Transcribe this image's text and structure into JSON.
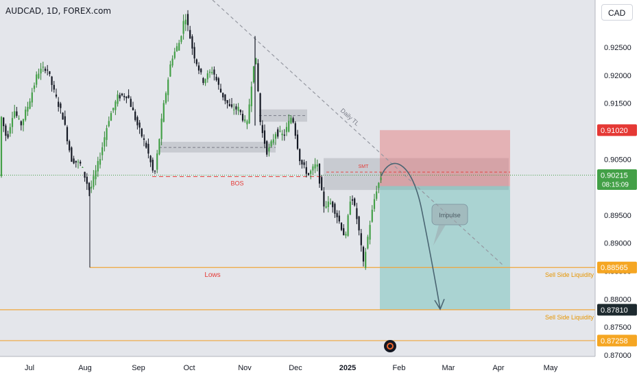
{
  "header": {
    "title": "AUDCAD, 1D, FOREX.com",
    "currency": "CAD"
  },
  "colors": {
    "up": "#26a69a",
    "down": "#131722",
    "up_body": "#43a047",
    "bg": "#e4e6eb",
    "accent_orange": "#f0a53a",
    "red": "#e53935"
  },
  "chart_data": {
    "type": "candlestick",
    "y_ticks": [
      "0.92500",
      "0.92000",
      "0.91500",
      "0.91000",
      "0.90500",
      "0.90000",
      "0.89500",
      "0.89000",
      "0.88500",
      "0.88000",
      "0.87500",
      "0.87000"
    ],
    "y_tick_values": [
      0.925,
      0.92,
      0.915,
      0.91,
      0.905,
      0.9,
      0.895,
      0.89,
      0.885,
      0.88,
      0.875,
      0.87
    ],
    "x_ticks": [
      "Jul",
      "Aug",
      "Sep",
      "Oct",
      "Nov",
      "Dec",
      "2025",
      "Feb",
      "Mar",
      "Apr",
      "May"
    ],
    "price_labels": [
      {
        "text": "0.91020",
        "value": 0.9102,
        "style": "red"
      },
      {
        "text": "0.90215",
        "value": 0.90215,
        "style": "green",
        "sub": "08:15:09"
      },
      {
        "text": "0.88565",
        "value": 0.88565,
        "style": "orange"
      },
      {
        "text": "0.87810",
        "value": 0.8781,
        "style": "dark"
      },
      {
        "text": "0.87258",
        "value": 0.87258,
        "style": "orange"
      }
    ],
    "levels": [
      {
        "value": 0.88565,
        "label": "Sell Side Liquidity"
      },
      {
        "value": 0.8781,
        "label": "Sell Side Liquidity"
      },
      {
        "value": 0.87258,
        "label": ""
      }
    ],
    "annotations": {
      "daily_tl": "Daily TL",
      "smt": "SMT",
      "bos": "BOS",
      "lows": "Lows",
      "impulse": "Impulse"
    },
    "trade": {
      "stop": 0.9102,
      "entry": 0.9002,
      "target": 0.8781
    },
    "current_price": 0.90215
  }
}
